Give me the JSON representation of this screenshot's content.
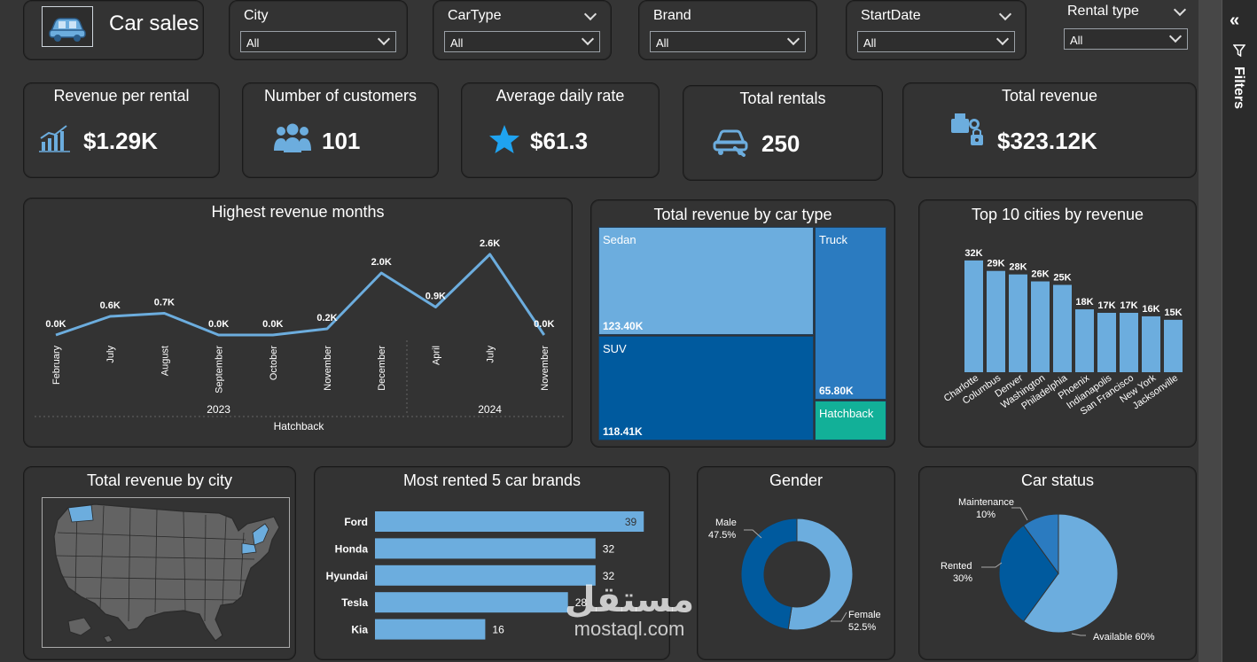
{
  "header": {
    "title": "Car sales",
    "icon": "car-icon"
  },
  "slicers": [
    {
      "label": "City",
      "value": "All"
    },
    {
      "label": "CarType",
      "value": "All"
    },
    {
      "label": "Brand",
      "value": "All"
    },
    {
      "label": "StartDate",
      "value": "All"
    },
    {
      "label": "Rental type",
      "value": "All"
    }
  ],
  "kpis": [
    {
      "title": "Revenue per rental",
      "value": "$1.29K",
      "icon": "growth-chart-icon"
    },
    {
      "title": "Number of customers",
      "value": "101",
      "icon": "people-icon"
    },
    {
      "title": "Average daily rate",
      "value": "$61.3",
      "icon": "star-icon"
    },
    {
      "title": "Total rentals",
      "value": "250",
      "icon": "car-service-icon"
    },
    {
      "title": "Total revenue",
      "value": "$323.12K",
      "icon": "revenue-icon"
    }
  ],
  "filters_pane": {
    "label": "Filters"
  },
  "colors": {
    "accent": "#6cadde",
    "dark_blue": "#005a9e",
    "mid_blue": "#2b7bc0",
    "teal": "#12b098",
    "card": "#333333"
  },
  "chart_data": [
    {
      "type": "line",
      "title": "Highest revenue months",
      "x": [
        "February",
        "July",
        "August",
        "September",
        "October",
        "November",
        "December",
        "April",
        "July",
        "November"
      ],
      "years": [
        {
          "label": "2023",
          "span": [
            0,
            6
          ]
        },
        {
          "label": "2024",
          "span": [
            7,
            9
          ]
        }
      ],
      "values": [
        0.0,
        0.6,
        0.7,
        0.0,
        0.0,
        0.2,
        2.0,
        0.9,
        2.6,
        0.0
      ],
      "labels": [
        "0.0K",
        "0.6K",
        "0.7K",
        "0.0K",
        "0.0K",
        "0.2K",
        "2.0K",
        "0.9K",
        "2.6K",
        "0.0K"
      ],
      "xlabel": "Hatchback",
      "ylim": [
        0,
        2.8
      ]
    },
    {
      "type": "treemap",
      "title": "Total revenue by car type",
      "items": [
        {
          "name": "Sedan",
          "value": 123.4,
          "label": "123.40K"
        },
        {
          "name": "SUV",
          "value": 118.41,
          "label": "118.41K"
        },
        {
          "name": "Truck",
          "value": 65.8,
          "label": "65.80K"
        },
        {
          "name": "Hatchback",
          "value": 15.51,
          "label": ""
        }
      ]
    },
    {
      "type": "bar",
      "title": "Top 10 cities by revenue",
      "categories": [
        "Charlotte",
        "Columbus",
        "Denver",
        "Washington",
        "Philadelphia",
        "Phoenix",
        "Indianapolis",
        "San Francisco",
        "New York",
        "Jacksonville"
      ],
      "values": [
        32,
        29,
        28,
        26,
        25,
        18,
        17,
        17,
        16,
        15
      ],
      "labels": [
        "32K",
        "29K",
        "28K",
        "26K",
        "25K",
        "18K",
        "17K",
        "17K",
        "16K",
        "15K"
      ],
      "ylim": [
        0,
        34
      ]
    },
    {
      "type": "map",
      "title": "Total revenue by city"
    },
    {
      "type": "bar",
      "orientation": "horizontal",
      "title": "Most rented 5 car brands",
      "categories": [
        "Ford",
        "Honda",
        "Hyundai",
        "Tesla",
        "Kia"
      ],
      "values": [
        39,
        32,
        32,
        28,
        16
      ],
      "xlim": [
        0,
        40
      ]
    },
    {
      "type": "pie",
      "donut": true,
      "title": "Gender",
      "slices": [
        {
          "name": "Male",
          "value": 47.5,
          "label": "47.5%"
        },
        {
          "name": "Female",
          "value": 52.5,
          "label": "52.5%"
        }
      ]
    },
    {
      "type": "pie",
      "title": "Car status",
      "slices": [
        {
          "name": "Available",
          "value": 60,
          "label": "60%"
        },
        {
          "name": "Rented",
          "value": 30,
          "label": "30%"
        },
        {
          "name": "Maintenance",
          "value": 10,
          "label": "10%"
        }
      ]
    }
  ],
  "watermark": {
    "arabic": "مستقل",
    "latin": "mostaql.com"
  }
}
